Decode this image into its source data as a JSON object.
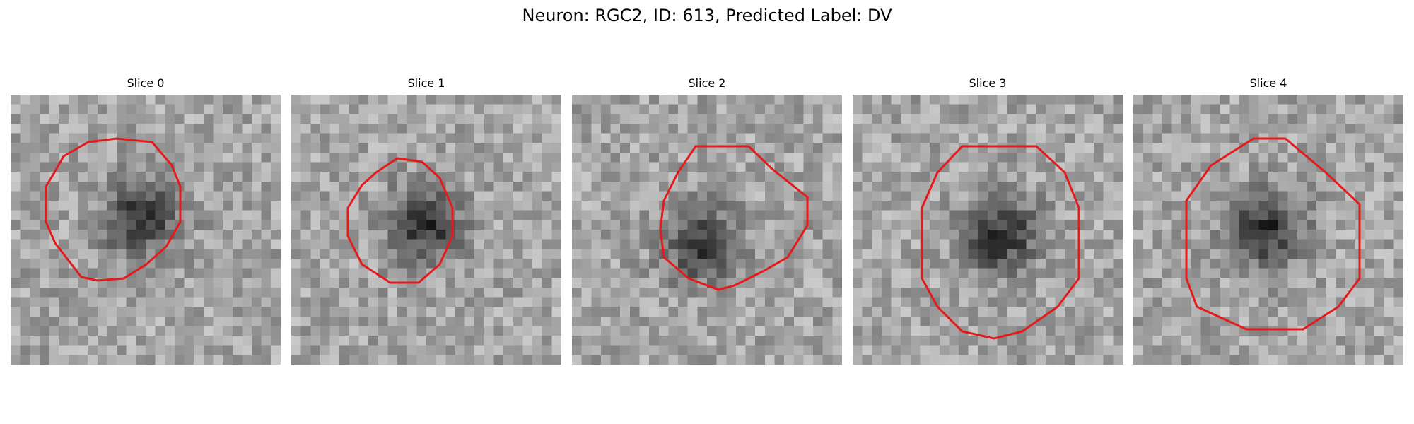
{
  "figure": {
    "title": "Neuron: RGC2, ID: 613, Predicted Label: DV"
  },
  "colors": {
    "contour": "#e41a1c",
    "colormap": "gray"
  },
  "panels": [
    {
      "label": "Slice 0",
      "dark_spot": [
        0.48,
        0.46
      ],
      "contour_shape": "octagon"
    },
    {
      "label": "Slice 1",
      "dark_spot": [
        0.5,
        0.48
      ],
      "contour_shape": "octagon"
    },
    {
      "label": "Slice 2",
      "dark_spot": [
        0.48,
        0.55
      ],
      "contour_shape": "octagon"
    },
    {
      "label": "Slice 3",
      "dark_spot": [
        0.55,
        0.52
      ],
      "contour_shape": "octagon"
    },
    {
      "label": "Slice 4",
      "dark_spot": [
        0.5,
        0.5
      ],
      "contour_shape": "octagon"
    }
  ]
}
